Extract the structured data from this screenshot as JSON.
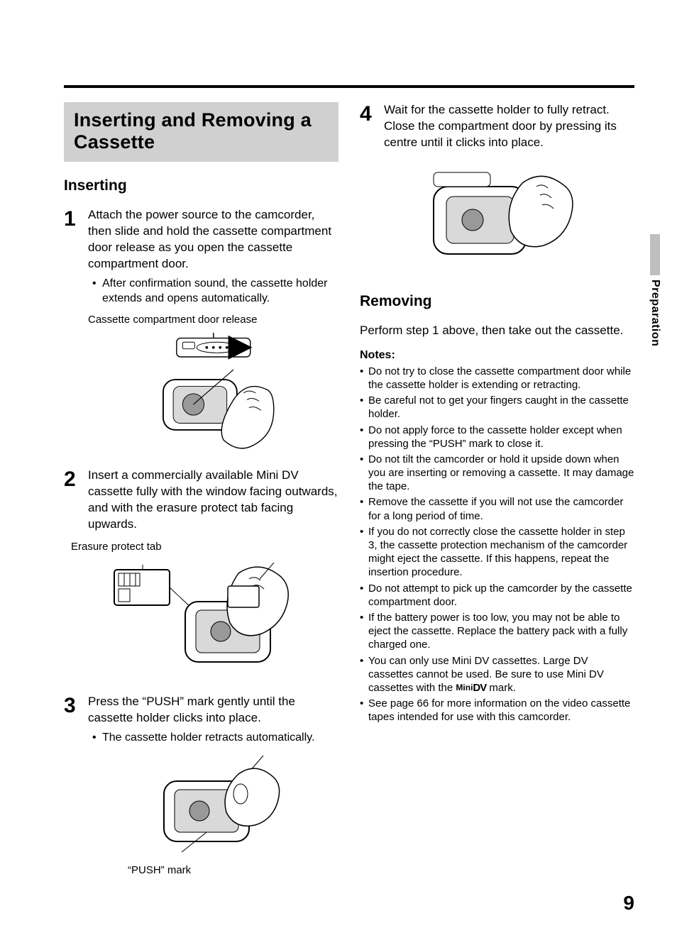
{
  "page": {
    "number": "9",
    "side_tab": "Preparation",
    "side_tab_bar_color": "#bfbfbf"
  },
  "title": "Inserting and Removing a Cassette",
  "title_box_bg": "#d0d0d0",
  "rule_color": "#000000",
  "inserting": {
    "heading": "Inserting",
    "steps": [
      {
        "num": "1",
        "text": "Attach the power source to the camcorder, then slide and hold the cassette compartment door release as you open the cassette compartment door.",
        "bullet": "After confirmation sound, the cassette holder extends and opens automatically.",
        "caption": "Cassette compartment door release"
      },
      {
        "num": "2",
        "text": "Insert a commercially available Mini DV cassette fully with the window facing outwards, and with the erasure protect tab facing upwards.",
        "caption": "Erasure protect tab"
      },
      {
        "num": "3",
        "text": "Press the “PUSH” mark gently until the cassette holder clicks into place.",
        "bullet": "The cassette holder retracts automatically.",
        "caption": "“PUSH” mark"
      },
      {
        "num": "4",
        "text": "Wait for the cassette holder to fully retract. Close the compartment door by pressing its centre until it clicks into place."
      }
    ]
  },
  "removing": {
    "heading": "Removing",
    "intro": "Perform step 1 above, then take out the cassette.",
    "notes_heading": "Notes:",
    "notes": [
      "Do not try to close the cassette compartment door while the cassette holder is extending or retracting.",
      "Be careful not to get your fingers caught in the cassette holder.",
      "Do not apply force to the cassette holder except when pressing the “PUSH” mark to close it.",
      "Do not tilt the camcorder or hold it upside down when you are inserting or removing a cassette. It may damage the tape.",
      "Remove the cassette if you will not use the camcorder for a long period of time.",
      "If you do not correctly close the cassette holder in step 3, the cassette protection mechanism of the camcorder might eject the cassette. If this happens, repeat the insertion procedure.",
      "Do not attempt to pick up the camcorder by the cassette compartment door.",
      "If the battery power is too low, you may not be able to eject the cassette. Replace the battery pack with a fully charged one.",
      "__MINIDV__",
      "See page 66 for more information on the video cassette tapes intended for use with this camcorder."
    ],
    "minidv_note_pre": "You can only use Mini DV cassettes. Large DV cassettes cannot be used. Be sure to use Mini DV cassettes with the ",
    "minidv_note_post": " mark.",
    "minidv_mark_small": "Mini",
    "minidv_mark_glyph": "DV"
  }
}
